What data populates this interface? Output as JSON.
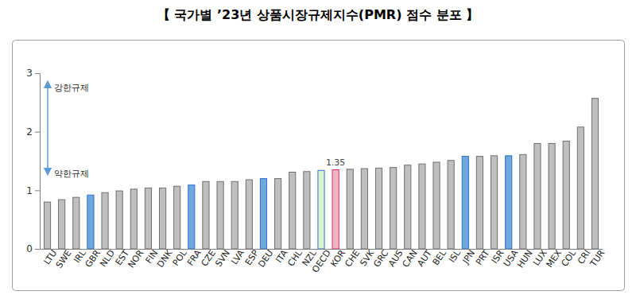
{
  "chart_data": {
    "type": "bar",
    "title": "【 국가별 ’23년 상품시장규제지수(PMR) 점수 분포 】",
    "categories": [
      "LTU",
      "SWE",
      "IRL",
      "GBR",
      "NLD",
      "EST",
      "NOR",
      "FIN",
      "DNK",
      "POL",
      "FRA",
      "CZE",
      "SVN",
      "LVA",
      "ESP",
      "DEU",
      "ITA",
      "CHL",
      "NZL",
      "OECD",
      "KOR",
      "CHE",
      "SVK",
      "GRC",
      "AUS",
      "CAN",
      "AUT",
      "BEL",
      "ISL",
      "JPN",
      "PRT",
      "ISR",
      "USA",
      "HUN",
      "LUX",
      "MEX",
      "COL",
      "CRI",
      "TUR"
    ],
    "values": [
      0.8,
      0.84,
      0.88,
      0.92,
      0.96,
      0.99,
      1.02,
      1.04,
      1.04,
      1.07,
      1.09,
      1.15,
      1.15,
      1.15,
      1.18,
      1.2,
      1.2,
      1.31,
      1.32,
      1.34,
      1.35,
      1.36,
      1.37,
      1.38,
      1.39,
      1.43,
      1.45,
      1.48,
      1.51,
      1.58,
      1.58,
      1.59,
      1.59,
      1.61,
      1.8,
      1.8,
      1.84,
      2.08,
      2.57
    ],
    "colors": [
      "#bfbfbf",
      "#bfbfbf",
      "#bfbfbf",
      "#6fa8dc",
      "#bfbfbf",
      "#bfbfbf",
      "#bfbfbf",
      "#bfbfbf",
      "#bfbfbf",
      "#bfbfbf",
      "#6fa8dc",
      "#bfbfbf",
      "#bfbfbf",
      "#bfbfbf",
      "#bfbfbf",
      "#6fa8dc",
      "#bfbfbf",
      "#bfbfbf",
      "#bfbfbf",
      "#d9f2d0",
      "#f4b6c2",
      "#bfbfbf",
      "#bfbfbf",
      "#bfbfbf",
      "#bfbfbf",
      "#bfbfbf",
      "#bfbfbf",
      "#bfbfbf",
      "#bfbfbf",
      "#6fa8dc",
      "#bfbfbf",
      "#bfbfbf",
      "#6fa8dc",
      "#bfbfbf",
      "#bfbfbf",
      "#bfbfbf",
      "#bfbfbf",
      "#bfbfbf",
      "#bfbfbf"
    ],
    "ylim": [
      0,
      3
    ],
    "yticks": [
      0,
      1,
      2,
      3
    ],
    "grid": false,
    "annotations": [
      {
        "x": "KOR",
        "text": "1.35"
      },
      {
        "text": "강한규제"
      },
      {
        "text": "약한규제"
      }
    ]
  }
}
